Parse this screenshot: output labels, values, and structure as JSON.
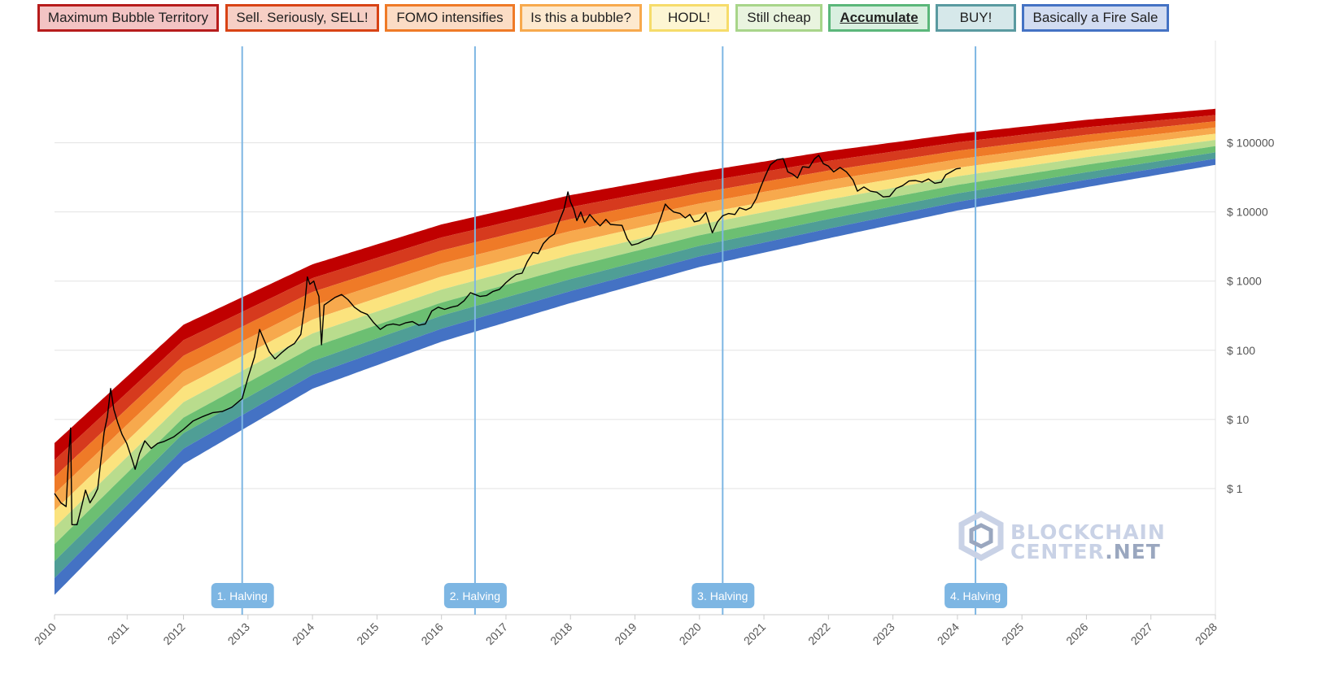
{
  "legend": {
    "items": [
      {
        "label": "Maximum Bubble Territory",
        "border": "#b71c1c",
        "fill": "#f3c4c4",
        "active": false
      },
      {
        "label": "Sell. Seriously, SELL!",
        "border": "#d84315",
        "fill": "#f6cfc5",
        "active": false
      },
      {
        "label": "FOMO intensifies",
        "border": "#ef7a27",
        "fill": "#fbdcc5",
        "active": false
      },
      {
        "label": "Is this a bubble?",
        "border": "#f7a94d",
        "fill": "#fde9cf",
        "active": false
      },
      {
        "label": "HODL!",
        "border": "#f6dc6a",
        "fill": "#fdf6d3",
        "active": false
      },
      {
        "label": "Still cheap",
        "border": "#a8d58a",
        "fill": "#e9f4df",
        "active": false
      },
      {
        "label": "Accumulate",
        "border": "#5bb77a",
        "fill": "#d9efe0",
        "active": true
      },
      {
        "label": "BUY!",
        "border": "#5a9aa0",
        "fill": "#d6e8ea",
        "active": false
      },
      {
        "label": "Basically a Fire Sale",
        "border": "#4472c4",
        "fill": "#d2dcf1",
        "active": false
      }
    ]
  },
  "watermark": {
    "line1": "BLOCKCHAIN",
    "line2a": "CENTER",
    "line2b": ".NET"
  },
  "chart_data": {
    "type": "line",
    "title": "",
    "xlabel": "",
    "ylabel": "",
    "y_scale": "log",
    "x_range": [
      2010,
      2028
    ],
    "y_range": [
      0.015,
      3000000
    ],
    "x_ticks": [
      "2010",
      "2011",
      "2012",
      "2013",
      "2014",
      "2015",
      "2016",
      "2017",
      "2018",
      "2019",
      "2020",
      "2021",
      "2022",
      "2023",
      "2024",
      "2025",
      "2026",
      "2027",
      "2028"
    ],
    "y_ticks": [
      {
        "value": 1,
        "label": "$ 1"
      },
      {
        "value": 10,
        "label": "$ 10"
      },
      {
        "value": 100,
        "label": "$ 100"
      },
      {
        "value": 1000,
        "label": "$ 1000"
      },
      {
        "value": 10000,
        "label": "$ 10000"
      },
      {
        "value": 100000,
        "label": "$ 100000"
      }
    ],
    "grid": true,
    "bands": [
      {
        "name": "Maximum Bubble Territory",
        "color": "#c00000"
      },
      {
        "name": "Sell. Seriously, SELL!",
        "color": "#d63a1e"
      },
      {
        "name": "FOMO intensifies",
        "color": "#ef7a27"
      },
      {
        "name": "Is this a bubble?",
        "color": "#f7a94d"
      },
      {
        "name": "HODL!",
        "color": "#fbe37e"
      },
      {
        "name": "Still cheap",
        "color": "#b9dc8d"
      },
      {
        "name": "Accumulate",
        "color": "#6cbf72"
      },
      {
        "name": "BUY!",
        "color": "#4f9e96"
      },
      {
        "name": "Basically a Fire Sale",
        "color": "#4472c4"
      }
    ],
    "band_bottom": [
      [
        2010.0,
        0.029
      ],
      [
        2012.0,
        2.26
      ],
      [
        2014.0,
        27.8
      ],
      [
        2016.0,
        133
      ],
      [
        2018.0,
        481
      ],
      [
        2020.0,
        1600
      ],
      [
        2022.0,
        4150
      ],
      [
        2024.0,
        10500
      ],
      [
        2026.0,
        22800
      ],
      [
        2028.0,
        48000
      ]
    ],
    "band_top": [
      [
        2010.0,
        4.55
      ],
      [
        2012.0,
        234
      ],
      [
        2014.0,
        1750
      ],
      [
        2016.0,
        6600
      ],
      [
        2018.0,
        17500
      ],
      [
        2020.0,
        38000
      ],
      [
        2022.0,
        75500
      ],
      [
        2024.0,
        135000
      ],
      [
        2026.0,
        215000
      ],
      [
        2028.0,
        310000
      ]
    ],
    "halvings": [
      {
        "label": "1. Halving",
        "x": 2012.91
      },
      {
        "label": "2. Halving",
        "x": 2016.52
      },
      {
        "label": "3. Halving",
        "x": 2020.36
      },
      {
        "label": "4. Halving",
        "x": 2024.28
      }
    ],
    "price_series": {
      "name": "",
      "color": "#000000",
      "points": [
        [
          2010.0,
          0.85
        ],
        [
          2010.1,
          0.62
        ],
        [
          2010.18,
          0.55
        ],
        [
          2010.22,
          3.0
        ],
        [
          2010.25,
          7.5
        ],
        [
          2010.27,
          0.3
        ],
        [
          2010.35,
          0.3
        ],
        [
          2010.42,
          0.55
        ],
        [
          2010.48,
          0.95
        ],
        [
          2010.55,
          0.62
        ],
        [
          2010.62,
          0.8
        ],
        [
          2010.67,
          1.0
        ],
        [
          2010.72,
          2.6
        ],
        [
          2010.77,
          6.5
        ],
        [
          2010.82,
          11
        ],
        [
          2010.87,
          28
        ],
        [
          2010.92,
          14
        ],
        [
          2010.98,
          9
        ],
        [
          2011.05,
          6
        ],
        [
          2011.12,
          4.5
        ],
        [
          2011.2,
          2.7
        ],
        [
          2011.25,
          1.9
        ],
        [
          2011.32,
          3.2
        ],
        [
          2011.4,
          4.9
        ],
        [
          2011.5,
          3.8
        ],
        [
          2011.6,
          4.5
        ],
        [
          2011.7,
          4.8
        ],
        [
          2011.85,
          5.6
        ],
        [
          2012.0,
          7.2
        ],
        [
          2012.15,
          9.5
        ],
        [
          2012.3,
          11
        ],
        [
          2012.45,
          12.5
        ],
        [
          2012.6,
          13
        ],
        [
          2012.75,
          15
        ],
        [
          2012.91,
          20
        ],
        [
          2013.0,
          40
        ],
        [
          2013.1,
          80
        ],
        [
          2013.18,
          200
        ],
        [
          2013.25,
          140
        ],
        [
          2013.33,
          95
        ],
        [
          2013.42,
          75
        ],
        [
          2013.52,
          92
        ],
        [
          2013.62,
          110
        ],
        [
          2013.72,
          125
        ],
        [
          2013.82,
          170
        ],
        [
          2013.88,
          450
        ],
        [
          2013.92,
          1150
        ],
        [
          2013.96,
          900
        ],
        [
          2014.02,
          1000
        ],
        [
          2014.05,
          800
        ],
        [
          2014.1,
          600
        ],
        [
          2014.14,
          120
        ],
        [
          2014.18,
          450
        ],
        [
          2014.25,
          500
        ],
        [
          2014.35,
          580
        ],
        [
          2014.45,
          640
        ],
        [
          2014.55,
          540
        ],
        [
          2014.65,
          420
        ],
        [
          2014.75,
          360
        ],
        [
          2014.85,
          330
        ],
        [
          2014.95,
          250
        ],
        [
          2015.05,
          200
        ],
        [
          2015.15,
          230
        ],
        [
          2015.25,
          240
        ],
        [
          2015.35,
          230
        ],
        [
          2015.45,
          250
        ],
        [
          2015.55,
          260
        ],
        [
          2015.65,
          230
        ],
        [
          2015.75,
          240
        ],
        [
          2015.85,
          370
        ],
        [
          2015.95,
          420
        ],
        [
          2016.05,
          390
        ],
        [
          2016.15,
          420
        ],
        [
          2016.25,
          440
        ],
        [
          2016.35,
          520
        ],
        [
          2016.45,
          680
        ],
        [
          2016.52,
          640
        ],
        [
          2016.6,
          600
        ],
        [
          2016.7,
          620
        ],
        [
          2016.8,
          710
        ],
        [
          2016.9,
          760
        ],
        [
          2017.0,
          950
        ],
        [
          2017.08,
          1100
        ],
        [
          2017.16,
          1250
        ],
        [
          2017.25,
          1300
        ],
        [
          2017.33,
          1900
        ],
        [
          2017.42,
          2600
        ],
        [
          2017.5,
          2500
        ],
        [
          2017.58,
          3500
        ],
        [
          2017.67,
          4300
        ],
        [
          2017.75,
          4800
        ],
        [
          2017.83,
          7500
        ],
        [
          2017.9,
          11000
        ],
        [
          2017.96,
          19500
        ],
        [
          2018.0,
          14000
        ],
        [
          2018.05,
          11000
        ],
        [
          2018.1,
          7500
        ],
        [
          2018.16,
          10000
        ],
        [
          2018.22,
          7000
        ],
        [
          2018.3,
          9200
        ],
        [
          2018.38,
          7500
        ],
        [
          2018.46,
          6300
        ],
        [
          2018.55,
          7800
        ],
        [
          2018.62,
          6600
        ],
        [
          2018.7,
          6500
        ],
        [
          2018.8,
          6400
        ],
        [
          2018.88,
          4100
        ],
        [
          2018.95,
          3300
        ],
        [
          2019.05,
          3500
        ],
        [
          2019.15,
          3900
        ],
        [
          2019.25,
          4200
        ],
        [
          2019.33,
          5600
        ],
        [
          2019.4,
          8200
        ],
        [
          2019.47,
          13000
        ],
        [
          2019.52,
          11500
        ],
        [
          2019.6,
          10000
        ],
        [
          2019.7,
          9500
        ],
        [
          2019.78,
          8200
        ],
        [
          2019.85,
          9200
        ],
        [
          2019.92,
          7200
        ],
        [
          2020.0,
          7500
        ],
        [
          2020.1,
          9800
        ],
        [
          2020.2,
          5000
        ],
        [
          2020.28,
          7200
        ],
        [
          2020.36,
          8800
        ],
        [
          2020.45,
          9500
        ],
        [
          2020.55,
          9200
        ],
        [
          2020.62,
          11500
        ],
        [
          2020.72,
          10700
        ],
        [
          2020.8,
          11600
        ],
        [
          2020.88,
          15500
        ],
        [
          2020.95,
          23000
        ],
        [
          2021.02,
          33000
        ],
        [
          2021.1,
          48000
        ],
        [
          2021.2,
          57000
        ],
        [
          2021.3,
          59000
        ],
        [
          2021.37,
          38000
        ],
        [
          2021.45,
          35000
        ],
        [
          2021.52,
          31000
        ],
        [
          2021.6,
          45000
        ],
        [
          2021.7,
          44000
        ],
        [
          2021.78,
          58000
        ],
        [
          2021.85,
          66000
        ],
        [
          2021.92,
          50000
        ],
        [
          2022.0,
          46000
        ],
        [
          2022.08,
          38000
        ],
        [
          2022.18,
          44000
        ],
        [
          2022.28,
          38000
        ],
        [
          2022.38,
          29000
        ],
        [
          2022.45,
          20000
        ],
        [
          2022.55,
          23000
        ],
        [
          2022.65,
          20000
        ],
        [
          2022.75,
          19300
        ],
        [
          2022.85,
          16500
        ],
        [
          2022.95,
          16800
        ],
        [
          2023.05,
          22000
        ],
        [
          2023.15,
          24000
        ],
        [
          2023.25,
          28000
        ],
        [
          2023.35,
          28500
        ],
        [
          2023.45,
          27000
        ],
        [
          2023.55,
          30000
        ],
        [
          2023.65,
          26000
        ],
        [
          2023.75,
          27000
        ],
        [
          2023.82,
          34500
        ],
        [
          2023.9,
          38000
        ],
        [
          2023.98,
          42000
        ],
        [
          2024.05,
          43000
        ]
      ]
    }
  }
}
